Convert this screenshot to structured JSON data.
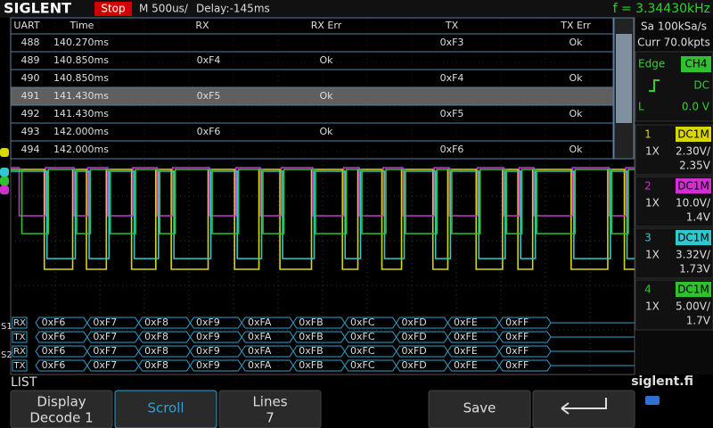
{
  "header": {
    "brand": "SIGLENT",
    "status": "Stop",
    "timebase": "M 500us/",
    "delay": "Delay:-145ms",
    "frequency": "f = 3.34430kHz"
  },
  "table": {
    "columns": [
      "UART",
      "Time",
      "RX",
      "RX Err",
      "TX",
      "TX Err"
    ],
    "rows": [
      [
        "488",
        "140.270ms",
        null,
        null,
        "0xF3",
        "Ok"
      ],
      [
        "489",
        "140.850ms",
        "0xF4",
        "Ok",
        null,
        null
      ],
      [
        "490",
        "140.850ms",
        null,
        null,
        "0xF4",
        "Ok"
      ],
      [
        "491",
        "141.430ms",
        "0xF5",
        "Ok",
        null,
        null
      ],
      [
        "492",
        "141.430ms",
        null,
        null,
        "0xF5",
        "Ok"
      ],
      [
        "493",
        "142.000ms",
        "0xF6",
        "Ok",
        null,
        null
      ],
      [
        "494",
        "142.000ms",
        null,
        null,
        "0xF6",
        "Ok"
      ]
    ]
  },
  "acquisition": {
    "sample_rate": "Sa 100kSa/s",
    "memory": "Curr 70.0kpts"
  },
  "trigger": {
    "type": "Edge",
    "source": "CH4",
    "coupling": "DC",
    "level_label": "L",
    "level": "0.0 V"
  },
  "channels": [
    {
      "number": "1",
      "coupling": "DC1M",
      "probe": "1X",
      "scale": "2.30V/",
      "offset": "2.35V",
      "color": "#d8d800"
    },
    {
      "number": "2",
      "coupling": "DC1M",
      "probe": "1X",
      "scale": "10.0V/",
      "offset": "1.4V",
      "color": "#d030d0"
    },
    {
      "number": "3",
      "coupling": "DC1M",
      "probe": "1X",
      "scale": "3.32V/",
      "offset": "1.73V",
      "color": "#30c8d0"
    },
    {
      "number": "4",
      "coupling": "DC1M",
      "probe": "1X",
      "scale": "5.00V/",
      "offset": "1.7V",
      "color": "#30c030"
    }
  ],
  "decode": {
    "buses": [
      {
        "name": "S1",
        "lines": [
          {
            "name": "RX",
            "bytes": [
              "0xF6",
              "0xF7",
              "0xF8",
              "0xF9",
              "0xFA",
              "0xFB",
              "0xFC",
              "0xFD",
              "0xFE",
              "0xFF"
            ]
          },
          {
            "name": "TX",
            "bytes": [
              "0xF6",
              "0xF7",
              "0xF8",
              "0xF9",
              "0xFA",
              "0xFB",
              "0xFC",
              "0xFD",
              "0xFE",
              "0xFF"
            ]
          }
        ]
      },
      {
        "name": "S2",
        "lines": [
          {
            "name": "RX",
            "bytes": [
              "0xF6",
              "0xF7",
              "0xF8",
              "0xF9",
              "0xFA",
              "0xFB",
              "0xFC",
              "0xFD",
              "0xFE",
              "0xFF"
            ]
          },
          {
            "name": "TX",
            "bytes": [
              "0xF6",
              "0xF7",
              "0xF8",
              "0xF9",
              "0xFA",
              "0xFB",
              "0xFC",
              "0xFD",
              "0xFE",
              "0xFF"
            ]
          }
        ]
      }
    ]
  },
  "footer": {
    "mode": "LIST",
    "website": "siglent.fi"
  },
  "menu": [
    {
      "label": "Display",
      "value": "Decode 1"
    },
    {
      "label": "Scroll"
    },
    {
      "label": "Lines",
      "value": "7"
    },
    {
      "label": "Save"
    }
  ]
}
